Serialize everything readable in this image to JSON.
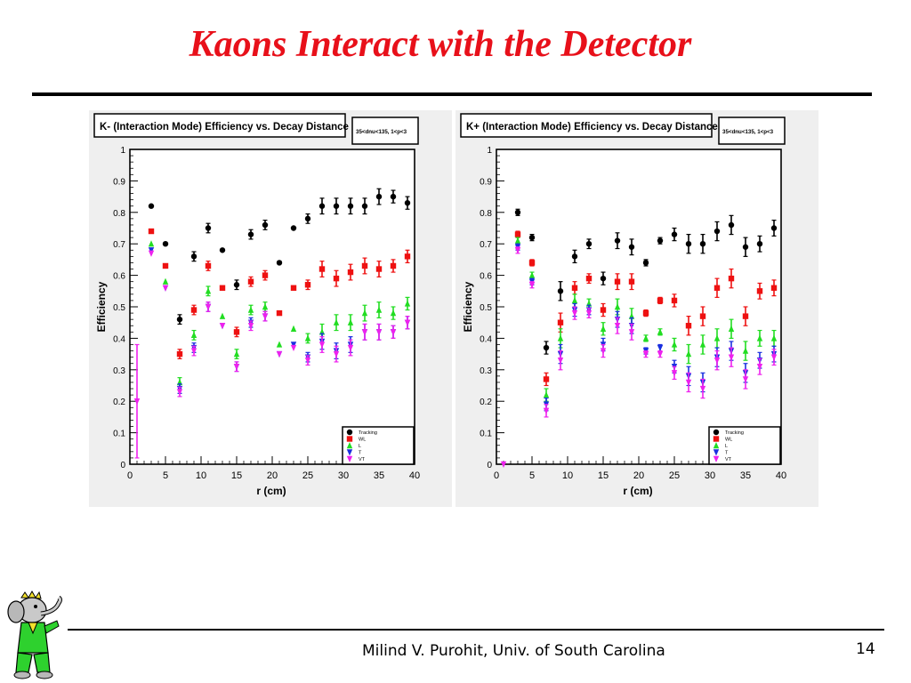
{
  "slide": {
    "title": "Kaons Interact with the Detector",
    "footer": "Milind V. Purohit, Univ. of South Carolina",
    "page_number": "14",
    "colors": {
      "title": "#e8101a",
      "tracking": "#000000",
      "wl": "#ee1111",
      "l": "#22dd22",
      "t": "#1a2fe0",
      "vt": "#ee22ee"
    }
  },
  "chart_data": [
    {
      "type": "scatter",
      "title": "K- (Interaction Mode) Efficiency vs. Decay Distance",
      "cuts_label": "35<dnu<135, 1<p<3",
      "xlabel": "r (cm)",
      "ylabel": "Efficiency",
      "xlim": [
        0,
        40
      ],
      "ylim": [
        0,
        1
      ],
      "x_ticks": [
        "0",
        "5",
        "10",
        "15",
        "20",
        "25",
        "30",
        "35",
        "40"
      ],
      "y_ticks": [
        "0",
        "0.1",
        "0.2",
        "0.3",
        "0.4",
        "0.5",
        "0.6",
        "0.7",
        "0.8",
        "0.9",
        "1"
      ],
      "x": [
        1,
        3,
        5,
        7,
        9,
        11,
        13,
        15,
        17,
        19,
        21,
        23,
        25,
        27,
        29,
        31,
        33,
        35,
        37,
        39
      ],
      "legend": [
        "Tracking",
        "WL",
        "L",
        "T",
        "VT"
      ],
      "legend_position": "bottom-right",
      "series": [
        {
          "name": "Tracking",
          "color": "#000000",
          "marker": "circle",
          "values": [
            null,
            0.82,
            0.7,
            0.46,
            0.66,
            0.75,
            0.68,
            0.57,
            0.73,
            0.76,
            0.64,
            0.75,
            0.78,
            0.82,
            0.82,
            0.82,
            0.82,
            0.85,
            0.85,
            0.83
          ],
          "errors": [
            0,
            0.005,
            0.005,
            0.015,
            0.015,
            0.015,
            0.005,
            0.015,
            0.015,
            0.015,
            0.005,
            0.005,
            0.015,
            0.025,
            0.025,
            0.025,
            0.025,
            0.025,
            0.02,
            0.02
          ]
        },
        {
          "name": "WL",
          "color": "#ee1111",
          "marker": "square",
          "values": [
            null,
            0.74,
            0.63,
            0.35,
            0.49,
            0.63,
            0.56,
            0.42,
            0.58,
            0.6,
            0.48,
            0.56,
            0.57,
            0.62,
            0.59,
            0.61,
            0.63,
            0.62,
            0.63,
            0.66
          ],
          "errors": [
            0,
            0.005,
            0.005,
            0.015,
            0.015,
            0.015,
            0.005,
            0.015,
            0.015,
            0.015,
            0.005,
            0.005,
            0.015,
            0.025,
            0.025,
            0.025,
            0.025,
            0.025,
            0.02,
            0.02
          ]
        },
        {
          "name": "L",
          "color": "#22dd22",
          "marker": "triangle-up",
          "values": [
            null,
            0.7,
            0.58,
            0.26,
            0.41,
            0.55,
            0.47,
            0.35,
            0.49,
            0.5,
            0.38,
            0.43,
            0.4,
            0.42,
            0.45,
            0.45,
            0.48,
            0.49,
            0.48,
            0.51
          ],
          "errors": [
            0,
            0.005,
            0.005,
            0.015,
            0.015,
            0.015,
            0.005,
            0.015,
            0.015,
            0.015,
            0.005,
            0.005,
            0.015,
            0.025,
            0.025,
            0.025,
            0.025,
            0.025,
            0.02,
            0.02
          ]
        },
        {
          "name": "T",
          "color": "#1a2fe0",
          "marker": "triangle-down",
          "values": [
            null,
            0.68,
            0.56,
            0.24,
            0.37,
            0.5,
            0.44,
            0.31,
            0.45,
            0.47,
            0.35,
            0.38,
            0.34,
            0.39,
            0.36,
            0.38,
            0.42,
            0.42,
            0.42,
            0.45
          ],
          "errors": [
            0,
            0.005,
            0.005,
            0.015,
            0.015,
            0.015,
            0.005,
            0.015,
            0.015,
            0.015,
            0.005,
            0.005,
            0.015,
            0.025,
            0.025,
            0.025,
            0.025,
            0.025,
            0.02,
            0.02
          ]
        },
        {
          "name": "VT",
          "color": "#ee22ee",
          "marker": "triangle-down",
          "values": [
            0.2,
            0.67,
            0.56,
            0.23,
            0.36,
            0.5,
            0.44,
            0.31,
            0.44,
            0.47,
            0.35,
            0.37,
            0.33,
            0.38,
            0.35,
            0.37,
            0.42,
            0.42,
            0.42,
            0.45
          ],
          "errors": [
            0.18,
            0.005,
            0.005,
            0.015,
            0.015,
            0.015,
            0.005,
            0.015,
            0.015,
            0.015,
            0.005,
            0.005,
            0.015,
            0.025,
            0.025,
            0.025,
            0.025,
            0.025,
            0.02,
            0.02
          ]
        }
      ]
    },
    {
      "type": "scatter",
      "title": "K+ (Interaction Mode) Efficiency vs. Decay Distance",
      "cuts_label": "35<dnu<135, 1<p<3",
      "xlabel": "r (cm)",
      "ylabel": "Efficiency",
      "xlim": [
        0,
        40
      ],
      "ylim": [
        0,
        1
      ],
      "x_ticks": [
        "0",
        "5",
        "10",
        "15",
        "20",
        "25",
        "30",
        "35",
        "40"
      ],
      "y_ticks": [
        "0",
        "0.1",
        "0.2",
        "0.3",
        "0.4",
        "0.5",
        "0.6",
        "0.7",
        "0.8",
        "0.9",
        "1"
      ],
      "x": [
        1,
        3,
        5,
        7,
        9,
        11,
        13,
        15,
        17,
        19,
        21,
        23,
        25,
        27,
        29,
        31,
        33,
        35,
        37,
        39
      ],
      "legend": [
        "Tracking",
        "WL",
        "L",
        "T",
        "VT"
      ],
      "legend_position": "bottom-right",
      "series": [
        {
          "name": "Tracking",
          "color": "#000000",
          "marker": "circle",
          "values": [
            null,
            0.8,
            0.72,
            0.37,
            0.55,
            0.66,
            0.7,
            0.59,
            0.71,
            0.69,
            0.64,
            0.71,
            0.73,
            0.7,
            0.7,
            0.74,
            0.76,
            0.69,
            0.7,
            0.75
          ],
          "errors": [
            0,
            0.01,
            0.01,
            0.02,
            0.03,
            0.02,
            0.015,
            0.02,
            0.025,
            0.025,
            0.01,
            0.01,
            0.02,
            0.03,
            0.03,
            0.03,
            0.03,
            0.03,
            0.025,
            0.025
          ]
        },
        {
          "name": "WL",
          "color": "#ee1111",
          "marker": "square",
          "values": [
            null,
            0.73,
            0.64,
            0.27,
            0.45,
            0.56,
            0.59,
            0.49,
            0.58,
            0.58,
            0.48,
            0.52,
            0.52,
            0.44,
            0.47,
            0.56,
            0.59,
            0.47,
            0.55,
            0.56
          ],
          "errors": [
            0,
            0.01,
            0.01,
            0.02,
            0.03,
            0.02,
            0.015,
            0.02,
            0.025,
            0.025,
            0.01,
            0.01,
            0.02,
            0.03,
            0.03,
            0.03,
            0.03,
            0.03,
            0.025,
            0.025
          ]
        },
        {
          "name": "L",
          "color": "#22dd22",
          "marker": "triangle-up",
          "values": [
            null,
            0.71,
            0.6,
            0.22,
            0.4,
            0.52,
            0.51,
            0.43,
            0.5,
            0.47,
            0.4,
            0.42,
            0.38,
            0.35,
            0.38,
            0.4,
            0.43,
            0.36,
            0.4,
            0.4
          ],
          "errors": [
            0,
            0.01,
            0.01,
            0.02,
            0.03,
            0.02,
            0.015,
            0.02,
            0.025,
            0.025,
            0.01,
            0.01,
            0.02,
            0.03,
            0.03,
            0.03,
            0.03,
            0.03,
            0.025,
            0.025
          ]
        },
        {
          "name": "T",
          "color": "#1a2fe0",
          "marker": "triangle-down",
          "values": [
            null,
            0.69,
            0.58,
            0.19,
            0.35,
            0.49,
            0.49,
            0.38,
            0.46,
            0.44,
            0.36,
            0.37,
            0.31,
            0.28,
            0.26,
            0.34,
            0.36,
            0.29,
            0.33,
            0.35
          ],
          "errors": [
            0,
            0.01,
            0.01,
            0.02,
            0.03,
            0.02,
            0.015,
            0.02,
            0.025,
            0.025,
            0.01,
            0.01,
            0.02,
            0.03,
            0.03,
            0.03,
            0.03,
            0.03,
            0.025,
            0.025
          ]
        },
        {
          "name": "VT",
          "color": "#ee22ee",
          "marker": "triangle-down",
          "values": [
            0.0,
            0.68,
            0.57,
            0.17,
            0.33,
            0.48,
            0.48,
            0.36,
            0.44,
            0.42,
            0.35,
            0.35,
            0.29,
            0.26,
            0.24,
            0.33,
            0.34,
            0.27,
            0.31,
            0.34
          ],
          "errors": [
            0.005,
            0.01,
            0.01,
            0.02,
            0.03,
            0.02,
            0.015,
            0.02,
            0.025,
            0.025,
            0.01,
            0.01,
            0.02,
            0.03,
            0.03,
            0.03,
            0.03,
            0.03,
            0.025,
            0.025
          ]
        }
      ]
    }
  ]
}
